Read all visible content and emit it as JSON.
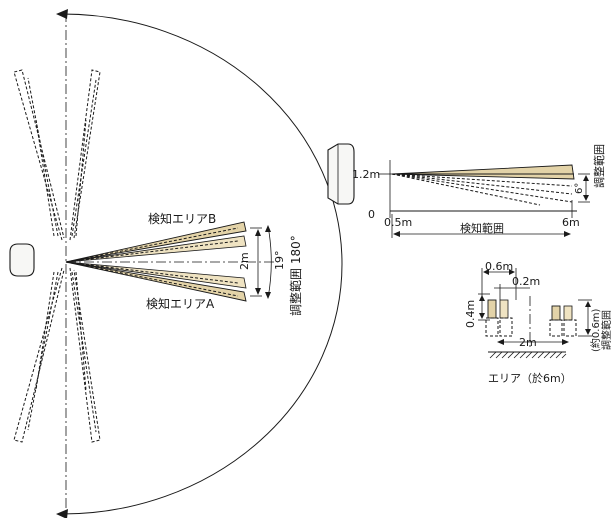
{
  "top_view": {
    "area_b_label": "検知エリアB",
    "area_a_label": "検知エリアA",
    "distance_label": "2m",
    "angle_label": "19°",
    "adjust_label": "調整範囲 180°"
  },
  "side_view": {
    "height_label": "1.2m",
    "angle_label": "6°",
    "adjust_label": "調整範囲",
    "zero_label": "0",
    "start_label": "0.5m",
    "end_label": "6m",
    "range_label": "検知範囲"
  },
  "section_view": {
    "width_label": "0.6m",
    "gap_label": "0.2m",
    "height_label": "0.4m",
    "spacing_label": "2m",
    "adjust_label_1": "(約0.6m)",
    "adjust_label_2": "調整範囲",
    "caption": "エリア（於6m）"
  },
  "colors": {
    "beam_fill": "#e3d3a8",
    "line": "#1a1a1a"
  }
}
